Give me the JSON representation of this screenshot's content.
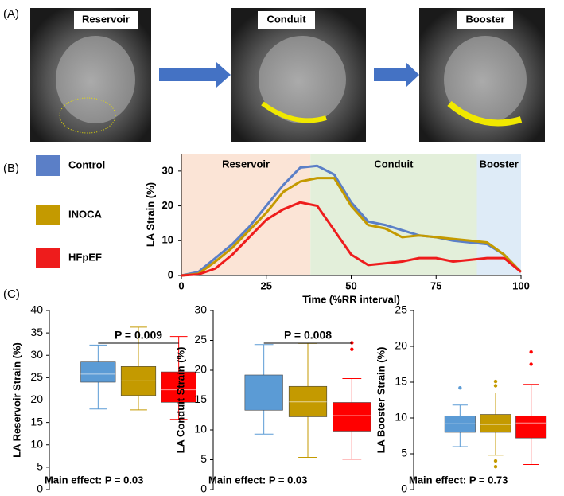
{
  "panel_labels": [
    "(A)",
    "(B)",
    "(C)"
  ],
  "image_labels": [
    "Reservoir",
    "Conduit",
    "Booster"
  ],
  "chart_data": [
    {
      "type": "line",
      "xlabel": "Time (%RR interval)",
      "ylabel": "LA Strain (%)",
      "x": [
        0,
        5,
        10,
        15,
        20,
        25,
        30,
        35,
        40,
        45,
        50,
        55,
        60,
        65,
        70,
        75,
        80,
        85,
        90,
        95,
        100
      ],
      "xlim": [
        0,
        100
      ],
      "xticks": [
        0,
        25,
        50,
        75,
        100
      ],
      "ylim": [
        0,
        35
      ],
      "yticks": [
        0,
        10,
        20,
        30
      ],
      "regions": [
        {
          "label": "Reservoir",
          "start": 0,
          "end": 38,
          "color": "#fbe4d6"
        },
        {
          "label": "Conduit",
          "start": 38,
          "end": 87,
          "color": "#e3efda"
        },
        {
          "label": "Booster",
          "start": 87,
          "end": 100,
          "color": "#deebf7"
        }
      ],
      "series": [
        {
          "name": "Control",
          "color": "#5b7fc7",
          "values": [
            0,
            1,
            5,
            9,
            14,
            20,
            26,
            31,
            31.5,
            29,
            21,
            15.5,
            14.5,
            13,
            11.5,
            11,
            10,
            9.5,
            9,
            6,
            1
          ]
        },
        {
          "name": "INOCA",
          "color": "#c49a00",
          "values": [
            0,
            0.5,
            4,
            8,
            13,
            18,
            24,
            27,
            28,
            28,
            20,
            14.5,
            13.5,
            11,
            11.5,
            11,
            10.5,
            10,
            9.5,
            6,
            1
          ]
        },
        {
          "name": "HFpEF",
          "color": "#ee1c1c",
          "values": [
            0,
            0.3,
            2,
            6,
            11,
            16,
            19,
            21,
            20,
            13,
            6,
            3,
            3.5,
            4,
            5,
            5,
            4,
            4.5,
            5,
            5,
            1
          ]
        }
      ]
    },
    {
      "type": "box",
      "ylabel": "LA Reservoir Strain (%)",
      "ylim": [
        0,
        40
      ],
      "yticks": [
        0,
        5,
        10,
        15,
        20,
        25,
        30,
        35,
        40
      ],
      "significance": "P = 0.009",
      "note": "Main effect:  P = 0.03",
      "boxes": [
        {
          "color": "#5b9bd5",
          "whislo": 18,
          "q1": 24,
          "median": 25.8,
          "q3": 28.5,
          "whishi": 32.3,
          "fliers": []
        },
        {
          "color": "#c49a00",
          "whislo": 17.8,
          "q1": 21,
          "median": 24.3,
          "q3": 27.5,
          "whishi": 36.3,
          "fliers": []
        },
        {
          "color": "#ff0000",
          "whislo": 15.7,
          "q1": 19.5,
          "median": 22.3,
          "q3": 26.3,
          "whishi": 34.2,
          "fliers": []
        }
      ]
    },
    {
      "type": "box",
      "ylabel": "LA Conduit Strain (%)",
      "ylim": [
        0,
        30
      ],
      "yticks": [
        0,
        5,
        10,
        15,
        20,
        25,
        30
      ],
      "significance": "P = 0.008",
      "note": "Main effect:  P = 0.03",
      "boxes": [
        {
          "color": "#5b9bd5",
          "whislo": 9.3,
          "q1": 13.3,
          "median": 16.2,
          "q3": 19.2,
          "whishi": 24.3,
          "fliers": []
        },
        {
          "color": "#c49a00",
          "whislo": 5.4,
          "q1": 12.2,
          "median": 14.7,
          "q3": 17.3,
          "whishi": 24.5,
          "fliers": []
        },
        {
          "color": "#ff0000",
          "whislo": 5.1,
          "q1": 9.8,
          "median": 12.4,
          "q3": 14.6,
          "whishi": 18.6,
          "fliers": [
            23.5,
            24.6
          ]
        }
      ]
    },
    {
      "type": "box",
      "ylabel": "LA Booster Strain (%)",
      "ylim": [
        0,
        25
      ],
      "yticks": [
        0,
        5,
        10,
        15,
        20,
        25
      ],
      "note": "Main effect:  P = 0.73",
      "boxes": [
        {
          "color": "#5b9bd5",
          "whislo": 6,
          "q1": 8,
          "median": 9.2,
          "q3": 10.3,
          "whishi": 11.8,
          "fliers": [
            14.2
          ]
        },
        {
          "color": "#c49a00",
          "whislo": 4.8,
          "q1": 8,
          "median": 9.1,
          "q3": 10.5,
          "whishi": 13.5,
          "fliers": [
            14.5,
            15.1,
            4,
            3.2
          ]
        },
        {
          "color": "#ff0000",
          "whislo": 3.5,
          "q1": 7.2,
          "median": 9.3,
          "q3": 10.3,
          "whishi": 14.7,
          "fliers": [
            17.5,
            19.2
          ]
        }
      ]
    }
  ]
}
